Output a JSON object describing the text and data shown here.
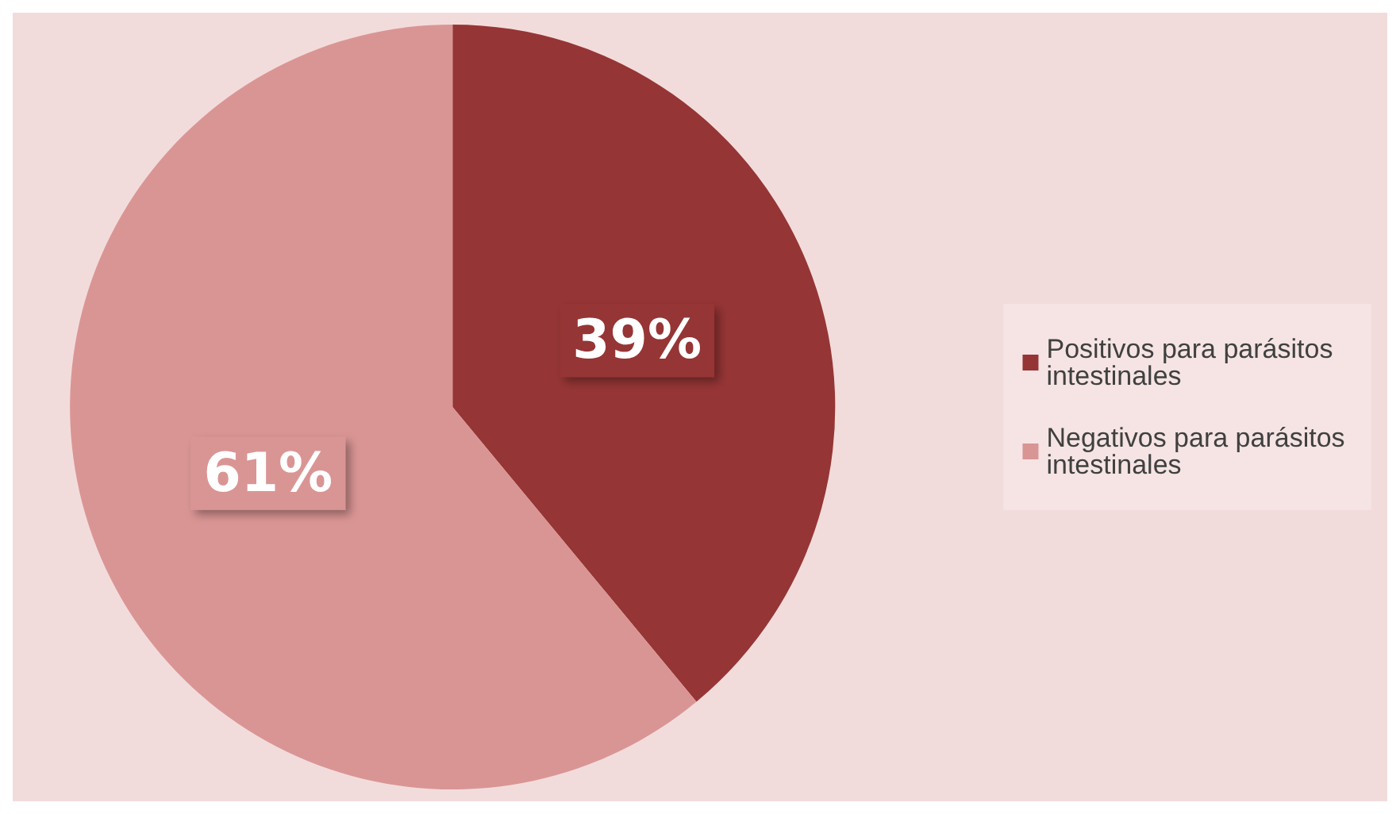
{
  "chart_data": {
    "type": "pie",
    "categories": [
      "Positivos para parásitos intestinales",
      "Negativos para parásitos intestinales"
    ],
    "values": [
      39,
      61
    ],
    "colors": [
      "#963535",
      "#d99594"
    ],
    "value_labels": [
      "39%",
      "61%"
    ],
    "legend": "right"
  }
}
